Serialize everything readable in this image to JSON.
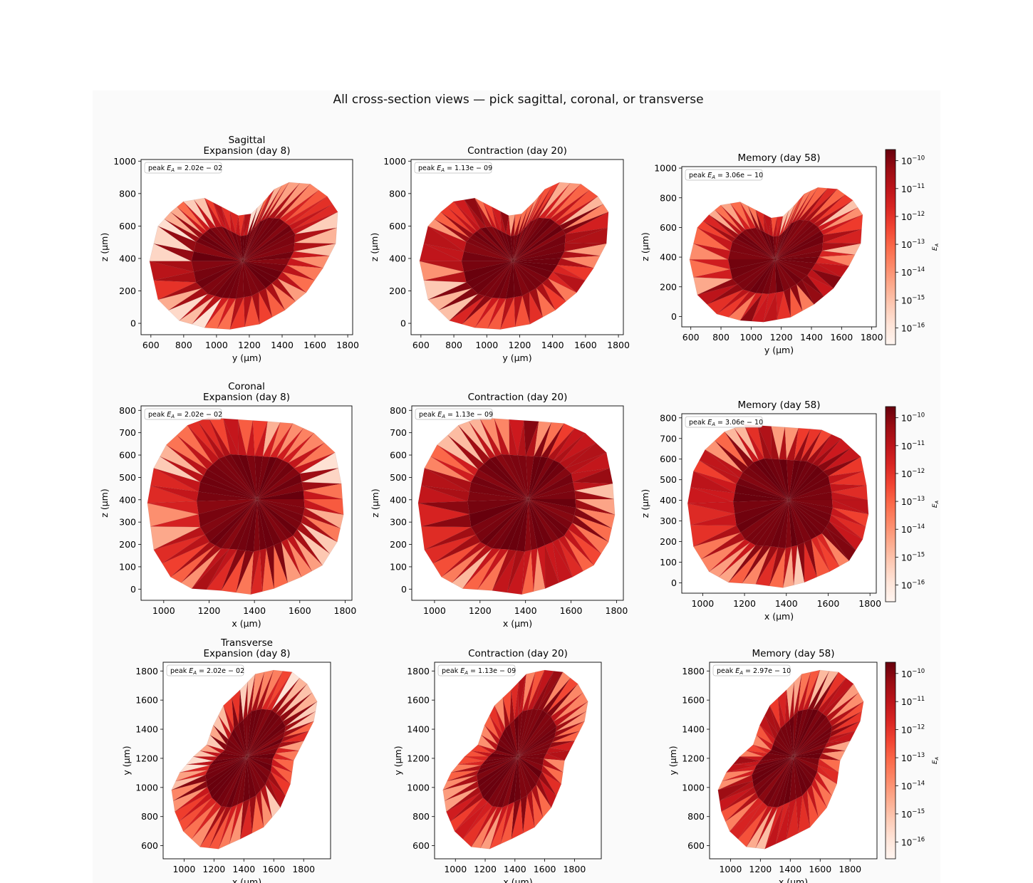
{
  "suptitle": "All cross-section views — pick sagittal, coronal, or transverse",
  "chart_data": {
    "type": "heatmap",
    "description_colormap": "Reds",
    "color_scale": "log",
    "cbar": {
      "label": "E_A",
      "ticks": [
        -10,
        -11,
        -12,
        -13,
        -14,
        -15,
        -16
      ],
      "range_log10": [
        -16.6,
        -9.6
      ]
    },
    "rows": [
      {
        "view": "Sagittal",
        "xlabel": "y (µm)",
        "ylabel": "z (µm)",
        "xlim": [
          540,
          1830
        ],
        "ylim": [
          -70,
          1010
        ],
        "xticks": [
          600,
          800,
          1000,
          1200,
          1400,
          1600,
          1800
        ],
        "yticks": [
          0,
          200,
          400,
          600,
          800,
          1000
        ],
        "panels": [
          {
            "title_line1": "Sagittal",
            "title_line2": "Expansion (day 8)",
            "peak": "2.02e − 02"
          },
          {
            "title_line1": "",
            "title_line2": "Contraction (day 20)",
            "peak": "1.13e − 09"
          },
          {
            "title_line1": "",
            "title_line2": "Memory (day 58)",
            "peak": "3.06e − 10"
          }
        ]
      },
      {
        "view": "Coronal",
        "xlabel": "x (µm)",
        "ylabel": "z (µm)",
        "xlim": [
          900,
          1830
        ],
        "ylim": [
          -50,
          820
        ],
        "xticks": [
          1000,
          1200,
          1400,
          1600,
          1800
        ],
        "yticks": [
          0,
          100,
          200,
          300,
          400,
          500,
          600,
          700,
          800
        ],
        "panels": [
          {
            "title_line1": "Coronal",
            "title_line2": "Expansion (day 8)",
            "peak": "2.02e − 02"
          },
          {
            "title_line1": "",
            "title_line2": "Contraction (day 20)",
            "peak": "1.13e − 09"
          },
          {
            "title_line1": "",
            "title_line2": "Memory (day 58)",
            "peak": "3.06e − 10"
          }
        ]
      },
      {
        "view": "Transverse",
        "xlabel": "x (µm)",
        "ylabel": "y (µm)",
        "xlim": [
          860,
          1980
        ],
        "ylim": [
          510,
          1860
        ],
        "xticks": [
          1000,
          1200,
          1400,
          1600,
          1800
        ],
        "yticks": [
          600,
          800,
          1000,
          1200,
          1400,
          1600,
          1800
        ],
        "panels": [
          {
            "title_line1": "Transverse",
            "title_line2": "Expansion (day 8)",
            "peak": "2.02e − 02"
          },
          {
            "title_line1": "",
            "title_line2": "Contraction (day 20)",
            "peak": "1.13e − 09"
          },
          {
            "title_line1": "",
            "title_line2": "Memory (day 58)",
            "peak": "2.97e − 10"
          }
        ]
      }
    ]
  }
}
